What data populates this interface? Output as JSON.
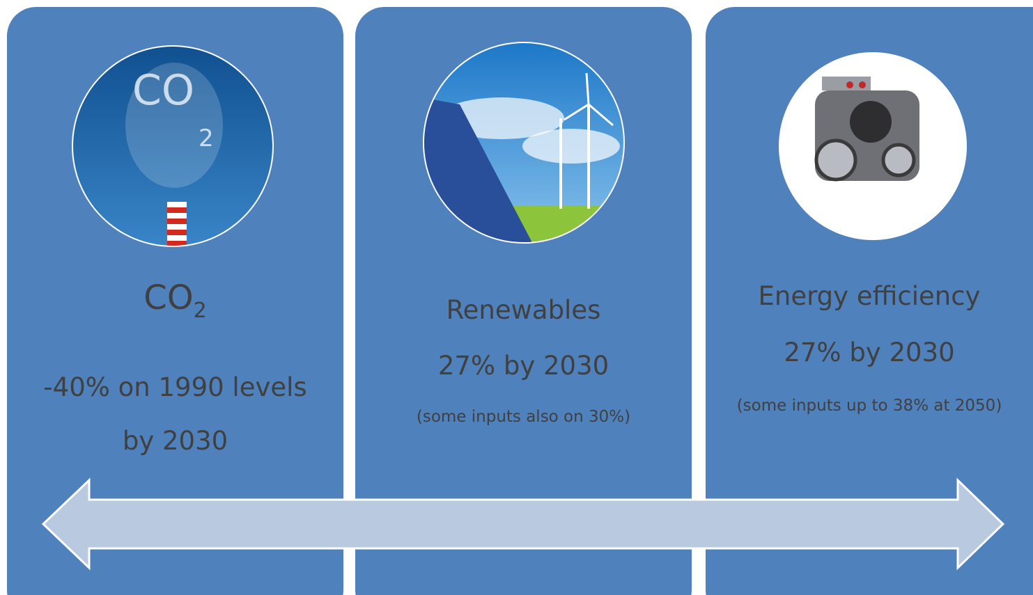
{
  "panels": [
    {
      "title": "CO",
      "title_subscript": "2",
      "lines": [
        "-40% on 1990 levels",
        "by 2030"
      ]
    },
    {
      "title": "Renewables",
      "lines": [
        "27% by 2030"
      ],
      "note": "(some inputs also on 30%)"
    },
    {
      "title": "Energy efficiency",
      "lines": [
        "27% by 2030"
      ],
      "note": "(some inputs up to 38% at 2050)"
    }
  ]
}
